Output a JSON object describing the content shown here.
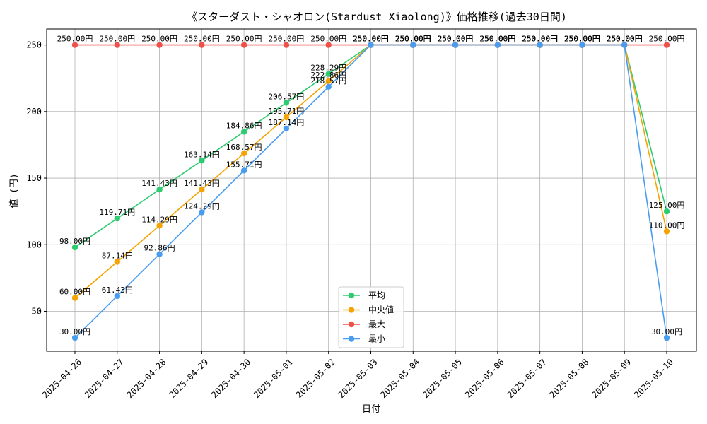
{
  "chart_data": {
    "type": "line",
    "title": "《スターダスト・シャオロン(Stardust Xiaolong)》価格推移(過去30日間)",
    "xlabel": "日付",
    "ylabel": "値 (円)",
    "ylim": [
      20,
      262
    ],
    "yticks": [
      50,
      100,
      150,
      200,
      250
    ],
    "grid": true,
    "legend_position": "bottom-center",
    "value_suffix": "円",
    "x": [
      "2025-04-26",
      "2025-04-27",
      "2025-04-28",
      "2025-04-29",
      "2025-04-30",
      "2025-05-01",
      "2025-05-02",
      "2025-05-03",
      "2025-05-04",
      "2025-05-05",
      "2025-05-06",
      "2025-05-07",
      "2025-05-08",
      "2025-05-09",
      "2025-05-10"
    ],
    "series": [
      {
        "name": "平均",
        "color": "#2ecc71",
        "values": [
          98.0,
          119.71,
          141.43,
          163.14,
          184.86,
          206.57,
          228.29,
          250.0,
          250.0,
          250.0,
          250.0,
          250.0,
          250.0,
          250.0,
          125.0
        ]
      },
      {
        "name": "中央値",
        "color": "#f5a300",
        "values": [
          60.0,
          87.14,
          114.29,
          141.43,
          168.57,
          195.71,
          222.86,
          250.0,
          250.0,
          250.0,
          250.0,
          250.0,
          250.0,
          250.0,
          110.0
        ]
      },
      {
        "name": "最大",
        "color": "#f0504a",
        "values": [
          250.0,
          250.0,
          250.0,
          250.0,
          250.0,
          250.0,
          250.0,
          250.0,
          250.0,
          250.0,
          250.0,
          250.0,
          250.0,
          250.0,
          250.0
        ]
      },
      {
        "name": "最小",
        "color": "#4a9cf0",
        "values": [
          30.0,
          61.43,
          92.86,
          124.29,
          155.71,
          187.14,
          218.57,
          250.0,
          250.0,
          250.0,
          250.0,
          250.0,
          250.0,
          250.0,
          30.0
        ]
      }
    ]
  }
}
